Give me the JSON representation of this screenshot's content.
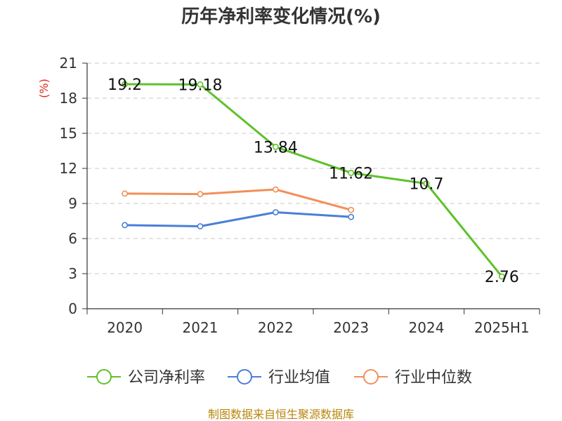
{
  "colors": {
    "company": "#5ec22a",
    "industry_avg": "#4a7fd8",
    "industry_median": "#f28f5a",
    "source": "#b8860b",
    "unit": "#e0261c",
    "axis": "#333333",
    "grid": "#c8c8c8"
  },
  "chart_data": {
    "type": "line",
    "title": "历年净利率变化情况(%)",
    "ylabel": "(%)",
    "xlabel": "",
    "ylim": [
      0,
      21
    ],
    "yticks": [
      "0",
      "3",
      "6",
      "9",
      "12",
      "15",
      "18",
      "21"
    ],
    "categories": [
      "2020",
      "2021",
      "2022",
      "2023",
      "2024",
      "2025H1"
    ],
    "series": [
      {
        "name": "公司净利率",
        "values": [
          19.2,
          19.18,
          13.84,
          11.62,
          10.7,
          2.76
        ],
        "labels": [
          "19.2",
          "19.18",
          "13.84",
          "11.62",
          "10.7",
          "2.76"
        ]
      },
      {
        "name": "行业均值",
        "values": [
          7.15,
          7.05,
          8.25,
          7.85,
          null,
          null
        ]
      },
      {
        "name": "行业中位数",
        "values": [
          9.85,
          9.8,
          10.2,
          8.45,
          null,
          null
        ]
      }
    ],
    "grid": true,
    "legend_position": "bottom"
  },
  "source": "制图数据来自恒生聚源数据库"
}
